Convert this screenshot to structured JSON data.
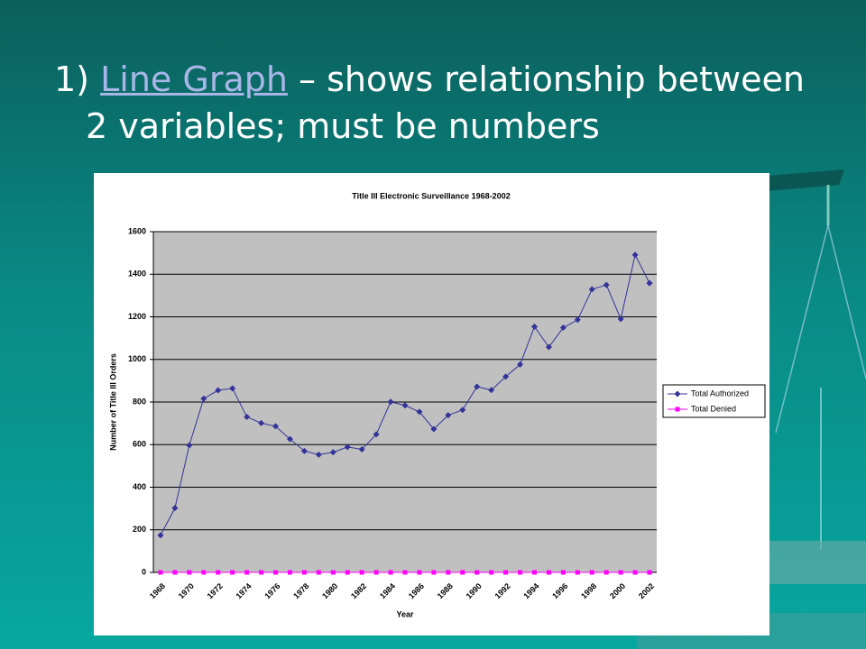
{
  "slide": {
    "heading": {
      "number": "1)",
      "link": "Line Graph",
      "rest": "– shows relationship between",
      "line2": "2 variables; must be numbers"
    }
  },
  "chart_data": {
    "type": "line",
    "title": "Title III Electronic Surveillance 1968-2002",
    "x_label": "Year",
    "y_label": "Number of Title III Orders",
    "categories": [
      "1968",
      null,
      "1970",
      null,
      "1972",
      null,
      "1974",
      null,
      "1976",
      null,
      "1978",
      null,
      "1980",
      null,
      "1982",
      null,
      "1984",
      null,
      "1986",
      null,
      "1988",
      null,
      "1990",
      null,
      "1992",
      null,
      "1994",
      null,
      "1996",
      null,
      "1998",
      null,
      "2000",
      null,
      "2002"
    ],
    "series": [
      {
        "name": "Total Authorized",
        "color": "#333399",
        "marker": "diamond",
        "values": [
          174,
          302,
          597,
          816,
          855,
          864,
          730,
          701,
          686,
          626,
          570,
          553,
          564,
          589,
          578,
          648,
          801,
          784,
          754,
          673,
          738,
          763,
          872,
          856,
          919,
          976,
          1154,
          1058,
          1149,
          1186,
          1329,
          1350,
          1190,
          1491,
          1358
        ]
      },
      {
        "name": "Total Denied",
        "color": "#ff00ff",
        "marker": "square",
        "values": [
          0,
          0,
          0,
          0,
          0,
          0,
          0,
          0,
          0,
          0,
          0,
          0,
          0,
          0,
          0,
          0,
          0,
          0,
          0,
          0,
          0,
          0,
          0,
          0,
          0,
          0,
          0,
          0,
          0,
          0,
          0,
          0,
          0,
          0,
          0
        ]
      }
    ],
    "ylim": [
      0,
      1600
    ],
    "yticks": [
      0,
      200,
      400,
      600,
      800,
      1000,
      1200,
      1400,
      1600
    ],
    "grid": true,
    "legend": "right"
  }
}
